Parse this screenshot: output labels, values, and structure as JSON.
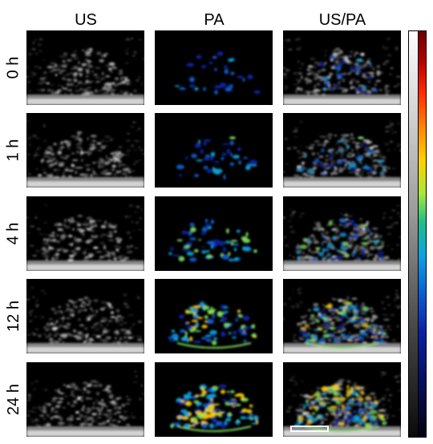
{
  "columns": {
    "us": "US",
    "pa": "PA",
    "overlay": "US/PA"
  },
  "rows": [
    {
      "label": "0 h"
    },
    {
      "label": "1 h"
    },
    {
      "label": "4 h"
    },
    {
      "label": "12 h"
    },
    {
      "label": "24 h"
    }
  ],
  "colors": {
    "background": "#ffffff",
    "panel_background": "#000000",
    "pa_signal_low": "#0a24a8",
    "pa_signal_mid": "#0aa6e0",
    "pa_signal_high": "#ffd200"
  },
  "pa_signal_levels": [
    0.12,
    0.2,
    0.35,
    0.55,
    0.75
  ],
  "colorbar": {
    "gray_scale": [
      "#000000",
      "#ffffff"
    ],
    "color_scale": [
      "#020210",
      "#0a24a8",
      "#0aa6e0",
      "#1fbf86",
      "#ffd200",
      "#ff2a00",
      "#6e0000"
    ]
  }
}
